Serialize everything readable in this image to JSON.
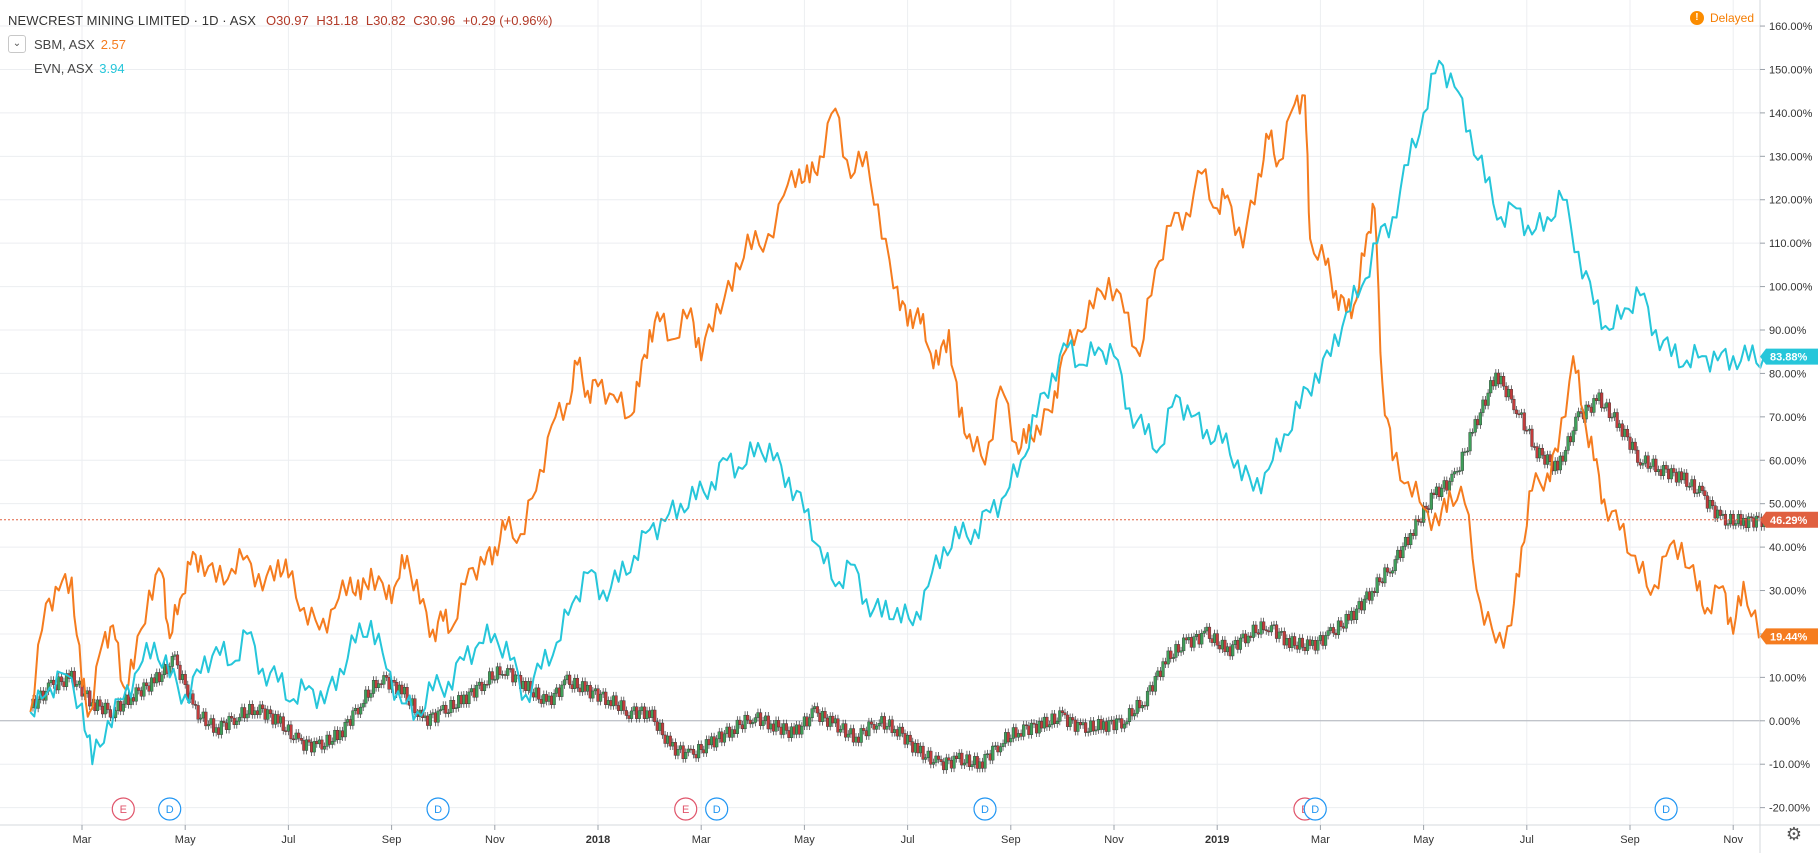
{
  "header": {
    "title": "NEWCREST MINING LIMITED · 1D · ASX",
    "ohlc": {
      "open": "O30.97",
      "high": "H31.18",
      "low": "L30.82",
      "close": "C30.96",
      "change": "+0.29 (+0.96%)"
    },
    "comparisons": [
      {
        "symbol": "SBM, ASX",
        "value": "2.57",
        "color": "#f57c1f"
      },
      {
        "symbol": "EVN, ASX",
        "value": "3.94",
        "color": "#26c6da"
      }
    ],
    "delayed": "Delayed",
    "delayed_icon": "!"
  },
  "colors": {
    "sbm": "#f57c1f",
    "evn": "#26c6da",
    "candle_up": "#3f9f5a",
    "candle_down": "#c13c3c",
    "price_line": "#e06040",
    "grid": "#eceef1",
    "axis_text": "#333333"
  },
  "events": [
    {
      "type": "E",
      "month_index": 1.8,
      "color": "#e0556b"
    },
    {
      "type": "D",
      "month_index": 2.7,
      "color": "#2196f3"
    },
    {
      "type": "D",
      "month_index": 7.9,
      "color": "#2196f3"
    },
    {
      "type": "E",
      "month_index": 12.7,
      "color": "#e0556b"
    },
    {
      "type": "D",
      "month_index": 13.3,
      "color": "#2196f3"
    },
    {
      "type": "D",
      "month_index": 18.5,
      "color": "#2196f3"
    },
    {
      "type": "E",
      "month_index": 24.7,
      "color": "#e0556b"
    },
    {
      "type": "D",
      "month_index": 24.9,
      "color": "#2196f3"
    },
    {
      "type": "D",
      "month_index": 31.7,
      "color": "#2196f3"
    }
  ],
  "chart_data": {
    "type": "line",
    "x_start": "2017-02-01",
    "x_end": "2019-11-10",
    "xticks": [
      {
        "label": "Mar",
        "month_index": 1
      },
      {
        "label": "May",
        "month_index": 3
      },
      {
        "label": "Jul",
        "month_index": 5
      },
      {
        "label": "Sep",
        "month_index": 7
      },
      {
        "label": "Nov",
        "month_index": 9
      },
      {
        "label": "2018",
        "month_index": 11
      },
      {
        "label": "Mar",
        "month_index": 13
      },
      {
        "label": "May",
        "month_index": 15
      },
      {
        "label": "Jul",
        "month_index": 17
      },
      {
        "label": "Sep",
        "month_index": 19
      },
      {
        "label": "Nov",
        "month_index": 21
      },
      {
        "label": "2019",
        "month_index": 23
      },
      {
        "label": "Mar",
        "month_index": 25
      },
      {
        "label": "May",
        "month_index": 27
      },
      {
        "label": "Jul",
        "month_index": 29
      },
      {
        "label": "Sep",
        "month_index": 31
      },
      {
        "label": "Nov",
        "month_index": 33
      }
    ],
    "ylim": [
      -24,
      166
    ],
    "yticks": [
      -20,
      -10,
      0,
      10,
      20,
      30,
      40,
      50,
      60,
      70,
      80,
      90,
      100,
      110,
      120,
      130,
      140,
      150,
      160
    ],
    "ytick_labels": [
      "-20.00%",
      "-10.00%",
      "0.00%",
      "10.00%",
      "20.00%",
      "30.00%",
      "40.00%",
      "50.00%",
      "60.00%",
      "70.00%",
      "80.00%",
      "90.00%",
      "100.00%",
      "110.00%",
      "120.00%",
      "130.00%",
      "140.00%",
      "150.00%",
      "160.00%"
    ],
    "grid": true,
    "last_values": [
      {
        "series": "EVN",
        "label": "83.88%",
        "value": 83.88,
        "color": "#26c6da"
      },
      {
        "series": "NCM",
        "label": "46.29%",
        "value": 46.29,
        "color": "#e06040"
      },
      {
        "series": "SBM",
        "label": "19.44%",
        "value": 19.44,
        "color": "#f57c1f"
      }
    ],
    "series": [
      {
        "name": "SBM, ASX",
        "color": "#f57c1f",
        "style": "line",
        "x": [
          0,
          0.3,
          0.55,
          0.8,
          1.0,
          1.15,
          1.4,
          1.6,
          1.8,
          2.0,
          2.3,
          2.55,
          2.7,
          2.9,
          3.1,
          3.3,
          3.6,
          3.9,
          4.2,
          4.5,
          4.8,
          5.0,
          5.3,
          5.6,
          5.9,
          6.2,
          6.4,
          6.6,
          6.9,
          7.1,
          7.3,
          7.55,
          7.8,
          8.0,
          8.2,
          8.5,
          8.8,
          9.0,
          9.2,
          9.5,
          9.8,
          10.1,
          10.4,
          10.6,
          10.8,
          11.0,
          11.3,
          11.6,
          11.8,
          12.0,
          12.2,
          12.5,
          12.8,
          13.0,
          13.3,
          13.6,
          13.9,
          14.2,
          14.6,
          14.9,
          15.1,
          15.3,
          15.6,
          15.9,
          16.2,
          16.5,
          16.8,
          17.0,
          17.2,
          17.4,
          17.6,
          17.8,
          18.0,
          18.2,
          18.5,
          18.8,
          19.1,
          19.3,
          19.5,
          19.8,
          20.0,
          20.3,
          20.6,
          20.9,
          21.2,
          21.5,
          21.8,
          22.1,
          22.4,
          22.7,
          23.0,
          23.2,
          23.5,
          23.8,
          24.0,
          24.2,
          24.5,
          24.7,
          24.8,
          25.1,
          25.3,
          25.5,
          25.7,
          25.9,
          26.05,
          26.2,
          26.4,
          26.7,
          27.0,
          27.3,
          27.5,
          27.8,
          28.1,
          28.4,
          28.7,
          28.9,
          29.1,
          29.4,
          29.6,
          29.9,
          30.1,
          30.3,
          30.5,
          30.8,
          31.1,
          31.4,
          31.7,
          32.0,
          32.3,
          32.5,
          32.8,
          33.0,
          33.2,
          33.5
        ],
        "y": [
          2,
          27,
          30,
          33,
          8,
          2,
          18,
          22,
          8,
          12,
          30,
          34,
          19,
          28,
          36,
          38,
          32,
          35,
          38,
          30,
          37,
          33,
          26,
          21,
          26,
          33,
          28,
          35,
          28,
          32,
          38,
          27,
          21,
          23,
          22,
          35,
          36,
          40,
          44,
          43,
          53,
          68,
          73,
          82,
          76,
          77,
          75,
          70,
          77,
          90,
          92,
          88,
          95,
          83,
          96,
          99,
          112,
          108,
          121,
          127,
          124,
          130,
          141,
          125,
          131,
          111,
          100,
          91,
          95,
          86,
          82,
          90,
          70,
          66,
          59,
          77,
          64,
          64,
          68,
          71,
          84,
          90,
          95,
          102,
          94,
          84,
          104,
          114,
          117,
          126,
          118,
          121,
          109,
          126,
          134,
          129,
          142,
          144,
          111,
          105,
          99,
          94,
          97,
          112,
          118,
          78,
          60,
          55,
          49,
          45,
          53,
          50,
          27,
          18,
          22,
          40,
          53,
          57,
          62,
          84,
          71,
          60,
          51,
          44,
          38,
          29,
          38,
          41,
          30,
          26,
          31,
          20,
          32,
          19
        ]
      },
      {
        "name": "EVN, ASX",
        "color": "#26c6da",
        "style": "line",
        "x": [
          0,
          0.3,
          0.6,
          1.0,
          1.2,
          1.5,
          1.8,
          2.1,
          2.4,
          2.7,
          3.0,
          3.3,
          3.6,
          3.9,
          4.2,
          4.5,
          4.8,
          5.1,
          5.4,
          5.7,
          6.0,
          6.3,
          6.6,
          6.9,
          7.2,
          7.5,
          7.8,
          8.1,
          8.4,
          8.7,
          9.0,
          9.3,
          9.6,
          9.9,
          10.2,
          10.5,
          10.8,
          11.1,
          11.4,
          11.7,
          12.0,
          12.3,
          12.6,
          12.9,
          13.2,
          13.5,
          13.8,
          14.1,
          14.4,
          14.7,
          15.0,
          15.3,
          15.6,
          15.9,
          16.2,
          16.5,
          16.8,
          17.1,
          17.4,
          17.7,
          18.0,
          18.3,
          18.6,
          18.9,
          19.2,
          19.5,
          19.8,
          20.1,
          20.4,
          20.7,
          21.0,
          21.3,
          21.6,
          21.9,
          22.2,
          22.5,
          22.8,
          23.1,
          23.4,
          23.7,
          24.0,
          24.3,
          24.6,
          24.9,
          25.2,
          25.5,
          25.8,
          26.1,
          26.4,
          26.7,
          27.0,
          27.3,
          27.6,
          27.9,
          28.2,
          28.5,
          28.8,
          29.1,
          29.4,
          29.7,
          30.0,
          30.3,
          30.6,
          30.9,
          31.2,
          31.5,
          31.8,
          32.1,
          32.4,
          32.7,
          33.0,
          33.3,
          33.6
        ],
        "y": [
          2,
          6,
          11,
          4,
          -10,
          0,
          5,
          12,
          18,
          10,
          6,
          11,
          17,
          13,
          20,
          12,
          9,
          5,
          8,
          4,
          12,
          18,
          23,
          12,
          4,
          2,
          7,
          9,
          14,
          18,
          20,
          14,
          6,
          12,
          18,
          27,
          34,
          30,
          32,
          38,
          44,
          46,
          50,
          51,
          55,
          60,
          58,
          64,
          60,
          56,
          48,
          40,
          31,
          36,
          28,
          24,
          26,
          22,
          31,
          40,
          42,
          44,
          48,
          52,
          60,
          70,
          80,
          86,
          82,
          86,
          84,
          72,
          66,
          63,
          75,
          70,
          67,
          64,
          60,
          53,
          58,
          66,
          72,
          80,
          84,
          94,
          100,
          110,
          116,
          128,
          140,
          152,
          146,
          136,
          124,
          116,
          118,
          112,
          116,
          120,
          108,
          96,
          90,
          95,
          98,
          90,
          84,
          83,
          84,
          83,
          84,
          83,
          84
        ]
      },
      {
        "name": "NEWCREST MINING LIMITED",
        "color_up": "#3f9f5a",
        "color_down": "#c13c3c",
        "style": "candles",
        "x": [
          0,
          0.4,
          0.8,
          1.2,
          1.6,
          2.0,
          2.4,
          2.8,
          3.2,
          3.6,
          4.0,
          4.4,
          4.8,
          5.2,
          5.6,
          6.0,
          6.4,
          6.8,
          7.2,
          7.6,
          8.0,
          8.4,
          8.8,
          9.2,
          9.6,
          10.0,
          10.4,
          10.8,
          11.2,
          11.6,
          12.0,
          12.4,
          12.8,
          13.2,
          13.6,
          14.0,
          14.4,
          14.8,
          15.2,
          15.6,
          16.0,
          16.4,
          16.8,
          17.2,
          17.6,
          18.0,
          18.4,
          18.8,
          19.2,
          19.6,
          20.0,
          20.4,
          20.8,
          21.2,
          21.6,
          22.0,
          22.4,
          22.8,
          23.2,
          23.6,
          24.0,
          24.4,
          24.8,
          25.2,
          25.6,
          26.0,
          26.4,
          26.8,
          27.2,
          27.6,
          28.0,
          28.4,
          28.8,
          29.2,
          29.6,
          30.0,
          30.4,
          30.8,
          31.2,
          31.6,
          32.0,
          32.4,
          32.8,
          33.2,
          33.6
        ],
        "y": [
          3,
          8,
          10,
          4,
          2,
          6,
          9,
          14,
          2,
          -2,
          1,
          3,
          0,
          -5,
          -6,
          -3,
          4,
          10,
          7,
          0,
          2,
          5,
          9,
          12,
          8,
          4,
          9,
          7,
          5,
          2,
          2,
          -6,
          -8,
          -5,
          -2,
          1,
          -1,
          -3,
          2,
          -1,
          -4,
          0,
          -2,
          -7,
          -10,
          -9,
          -10,
          -5,
          -2,
          -1,
          1,
          -2,
          -1,
          0,
          5,
          14,
          18,
          20,
          16,
          20,
          22,
          18,
          17,
          20,
          24,
          30,
          36,
          44,
          52,
          56,
          68,
          80,
          72,
          62,
          58,
          70,
          74,
          68,
          60,
          58,
          56,
          52,
          46,
          46,
          46.29
        ]
      }
    ]
  }
}
